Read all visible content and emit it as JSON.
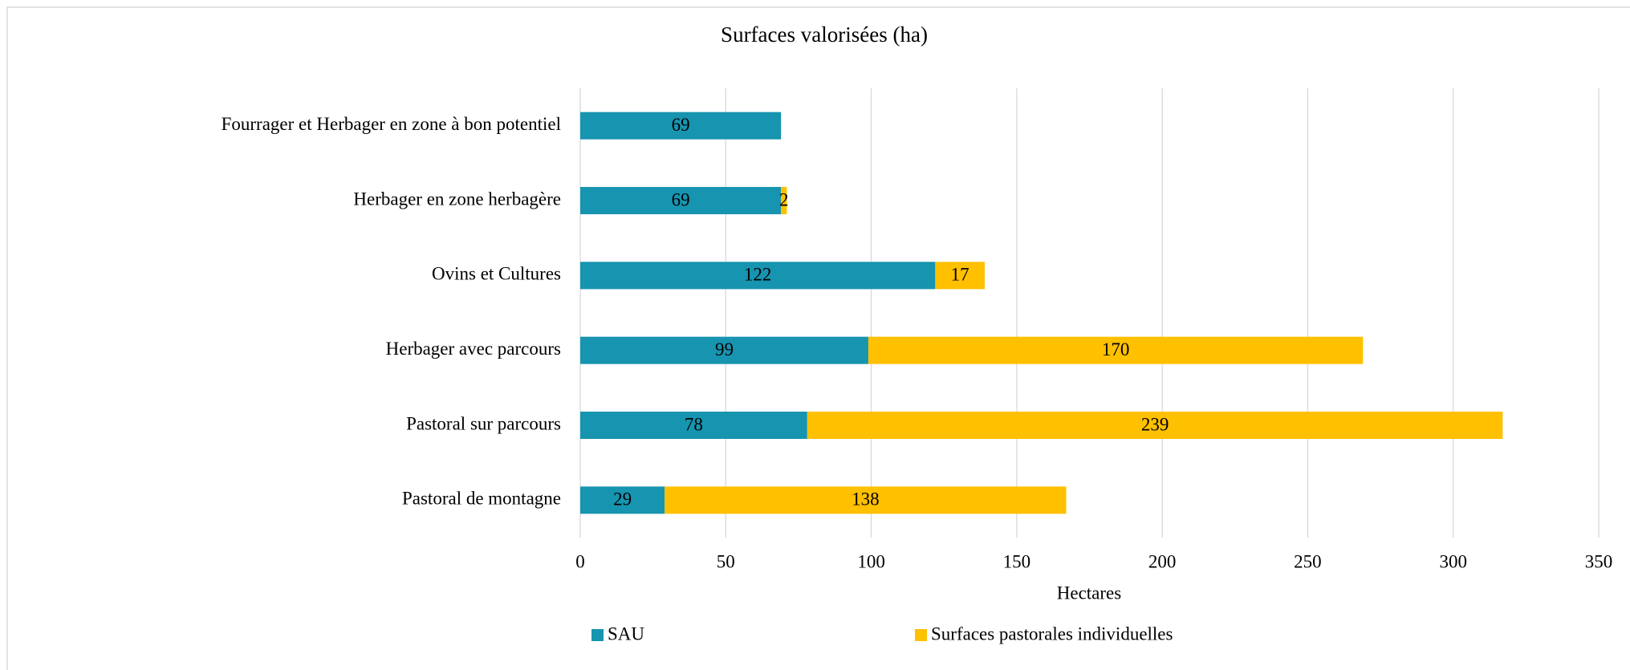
{
  "chart_data": {
    "type": "stacked_barh",
    "title": "Surfaces valorisées (ha)",
    "x_label": "Hectares",
    "categories": [
      "Fourrager et Herbager en zone à bon potentiel",
      "Herbager en zone herbagère",
      "Ovins et Cultures",
      "Herbager avec parcours",
      "Pastoral sur parcours",
      "Pastoral de montagne"
    ],
    "series": [
      {
        "name": "SAU",
        "color": "#1794b0",
        "values": [
          69,
          69,
          122,
          99,
          78,
          29
        ]
      },
      {
        "name": "Surfaces pastorales individuelles",
        "color": "#ffc000",
        "values": [
          null,
          2,
          17,
          170,
          239,
          138
        ]
      }
    ],
    "xlim": [
      0,
      350
    ],
    "xticks": [
      0,
      50,
      100,
      150,
      200,
      250,
      300,
      350
    ],
    "grid": true,
    "legend": "bottom"
  }
}
